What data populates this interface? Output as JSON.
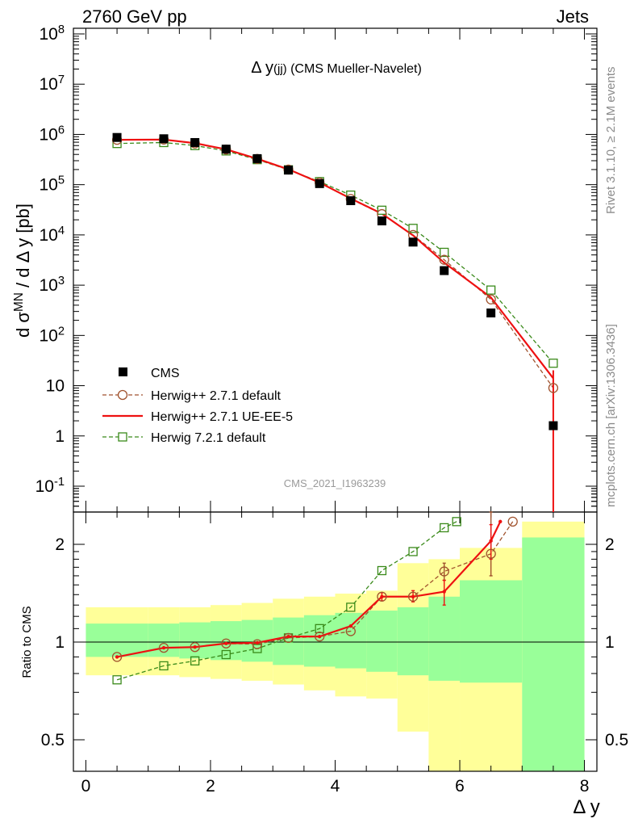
{
  "header": {
    "left": "2760 GeV pp",
    "right": "Jets"
  },
  "plot_title": "Δ y(jj) (CMS Mueller-Navelet)",
  "ylabel": "d σ^MN / d Δ y [pb]",
  "xlabel": "Δ y",
  "ratio_ylabel": "Ratio to CMS",
  "watermark": "CMS_2021_I1963239",
  "side_top": "Rivet 3.1.10, ≥ 2.1M events",
  "side_bottom": "mcplots.cern.ch [arXiv:1306.3436]",
  "colors": {
    "data": "#000000",
    "herwigpp_default": "#a0522d",
    "herwigpp_ueee5": "#ee1111",
    "herwig7": "#3a8a1a",
    "band_inner": "#99ff99",
    "band_outer": "#ffff99"
  },
  "chart_data": [
    {
      "type": "scatter",
      "panel": "main",
      "yscale": "log",
      "xlim": [
        -0.2,
        8.2
      ],
      "ylim": [
        0.035,
        100000000
      ],
      "x_ticks": [
        0,
        2,
        4,
        6,
        8
      ],
      "y_tick_labels": [
        "10^8",
        "10^7",
        "10^6",
        "10^5",
        "10^4",
        "10^3",
        "10^2",
        "10",
        "1",
        "10^-1"
      ],
      "legend_position": "lower-left",
      "series": [
        {
          "name": "CMS",
          "marker": "filled-square",
          "x": [
            0.5,
            1.25,
            1.75,
            2.25,
            2.75,
            3.25,
            3.75,
            4.25,
            4.75,
            5.25,
            5.75,
            6.5,
            7.5
          ],
          "y": [
            870000,
            820000,
            690000,
            510000,
            330000,
            195000,
            105000,
            48000,
            19000,
            7200,
            1950,
            280,
            1.6
          ]
        },
        {
          "name": "Herwig++ 2.7.1 default",
          "marker": "open-circle",
          "line": "dashed",
          "x": [
            0.5,
            1.25,
            1.75,
            2.25,
            2.75,
            3.25,
            3.75,
            4.25,
            4.75,
            5.25,
            5.75,
            6.5,
            7.5
          ],
          "y": [
            780000,
            790000,
            660000,
            500000,
            325000,
            200000,
            110000,
            52000,
            26000,
            10000,
            3200,
            520,
            9
          ]
        },
        {
          "name": "Herwig++ 2.7.1 UE-EE-5",
          "marker": "none",
          "line": "solid",
          "x": [
            0.5,
            1.25,
            1.75,
            2.25,
            2.75,
            3.25,
            3.75,
            4.25,
            4.75,
            5.25,
            5.75,
            6.5,
            7.5
          ],
          "y": [
            780000,
            790000,
            670000,
            505000,
            328000,
            202000,
            110000,
            53000,
            26500,
            9800,
            2800,
            570,
            14
          ]
        },
        {
          "name": "Herwig 7.2.1 default",
          "marker": "open-square",
          "line": "dashed",
          "x": [
            0.5,
            1.25,
            1.75,
            2.25,
            2.75,
            3.25,
            3.75,
            4.25,
            4.75,
            5.25,
            5.75,
            6.5,
            7.5
          ],
          "y": [
            660000,
            690000,
            600000,
            470000,
            315000,
            198000,
            115000,
            62000,
            31000,
            13500,
            4500,
            800,
            28
          ]
        }
      ]
    },
    {
      "type": "line",
      "panel": "ratio",
      "yscale": "log",
      "ylim": [
        0.43,
        2.35
      ],
      "y_tick_labels": [
        "2",
        "1",
        "0.5"
      ],
      "bands": {
        "edges": [
          0,
          1,
          1.5,
          2,
          2.5,
          3,
          3.5,
          4,
          4.5,
          5,
          5.5,
          6,
          7,
          8
        ],
        "inner_lo": [
          0.9,
          0.9,
          0.89,
          0.88,
          0.87,
          0.85,
          0.84,
          0.83,
          0.81,
          0.79,
          0.76,
          0.75,
          0.37
        ],
        "inner_hi": [
          1.14,
          1.14,
          1.15,
          1.16,
          1.17,
          1.19,
          1.21,
          1.23,
          1.25,
          1.28,
          1.38,
          1.55,
          2.1
        ],
        "outer_lo": [
          0.79,
          0.79,
          0.78,
          0.77,
          0.76,
          0.74,
          0.71,
          0.68,
          0.67,
          0.53,
          0.39,
          0.36,
          0.36
        ],
        "outer_hi": [
          1.28,
          1.28,
          1.28,
          1.3,
          1.32,
          1.36,
          1.38,
          1.41,
          1.44,
          1.75,
          1.8,
          1.95,
          2.35
        ]
      },
      "series": [
        {
          "name": "Herwig++ 2.7.1 default",
          "x": [
            0.5,
            1.25,
            1.75,
            2.25,
            2.75,
            3.25,
            3.75,
            4.25,
            4.75,
            5.25,
            5.75,
            6.5,
            6.85
          ],
          "y": [
            0.9,
            0.96,
            0.965,
            0.99,
            0.985,
            1.03,
            1.04,
            1.08,
            1.38,
            1.38,
            1.65,
            1.87,
            2.35
          ]
        },
        {
          "name": "Herwig++ 2.7.1 UE-EE-5",
          "x": [
            0.5,
            1.25,
            1.75,
            2.25,
            2.75,
            3.25,
            3.75,
            4.25,
            4.75,
            5.25,
            5.75,
            6.5,
            6.65
          ],
          "y": [
            0.9,
            0.96,
            0.965,
            0.99,
            0.995,
            1.04,
            1.04,
            1.12,
            1.38,
            1.38,
            1.43,
            2.05,
            2.35
          ]
        },
        {
          "name": "Herwig 7.2.1 default",
          "x": [
            0.5,
            1.25,
            1.75,
            2.25,
            2.75,
            3.25,
            3.75,
            4.25,
            4.75,
            5.25,
            5.75,
            5.95
          ],
          "y": [
            0.765,
            0.845,
            0.875,
            0.915,
            0.955,
            1.03,
            1.1,
            1.28,
            1.66,
            1.9,
            2.25,
            2.35
          ]
        }
      ]
    }
  ]
}
